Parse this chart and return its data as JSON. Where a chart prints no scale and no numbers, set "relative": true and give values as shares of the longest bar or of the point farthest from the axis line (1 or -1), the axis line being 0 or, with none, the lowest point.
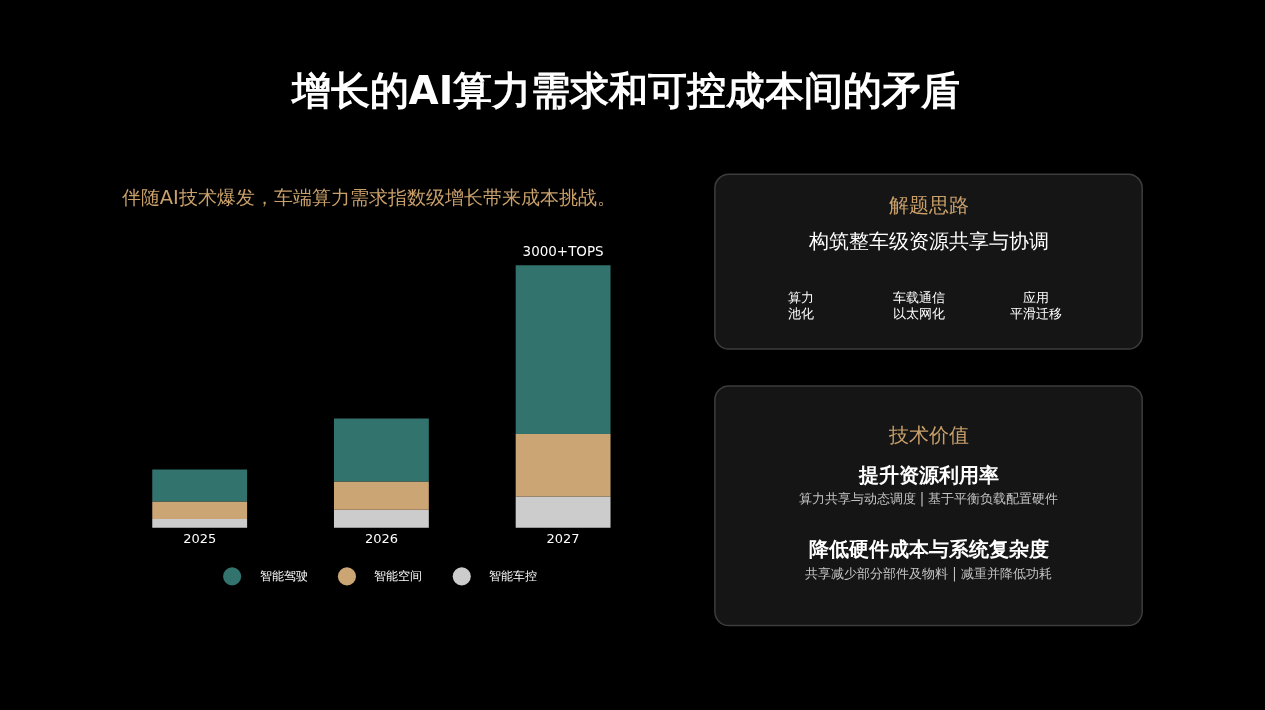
{
  "chart_data": [
    {
      "type": "bar",
      "title": "增长的AI算力需求和可控成本间的矛盾",
      "subtitle": "伴随AI技术爆发，车端算力需求指数级增长带来成本挑战。",
      "categories": [
        "2025",
        "2026",
        "2027"
      ],
      "stacked": true,
      "relative": true,
      "series": [
        {
          "name": "智能车控",
          "color": "#cccccc",
          "values": [
            0.033,
            0.068,
            0.119
          ]
        },
        {
          "name": "智能空间",
          "color": "#cca574",
          "values": [
            0.067,
            0.108,
            0.238
          ]
        },
        {
          "name": "智能驾驶",
          "color": "#33736e",
          "values": [
            0.122,
            0.24,
            0.643
          ]
        }
      ],
      "annotations": [
        {
          "text": "3000+TOPS",
          "x": "2027",
          "y": 1
        }
      ],
      "legend": "bottom"
    },
    {
      "type": "other",
      "title": "解题思路",
      "subtitle": "构筑整车级资源共享与协调",
      "annotations": [
        "算力池化",
        "车载通信以太网化",
        "应用平滑迁移"
      ]
    },
    {
      "type": "other",
      "title": "技术价值",
      "annotations": [
        "提升资源利用率",
        "算力共享与动态调度 | 基于平衡负载配置硬件",
        "降低硬件成本与系统复杂度",
        "共享减少部分部件及物料 | 减重并降低功耗"
      ]
    }
  ]
}
